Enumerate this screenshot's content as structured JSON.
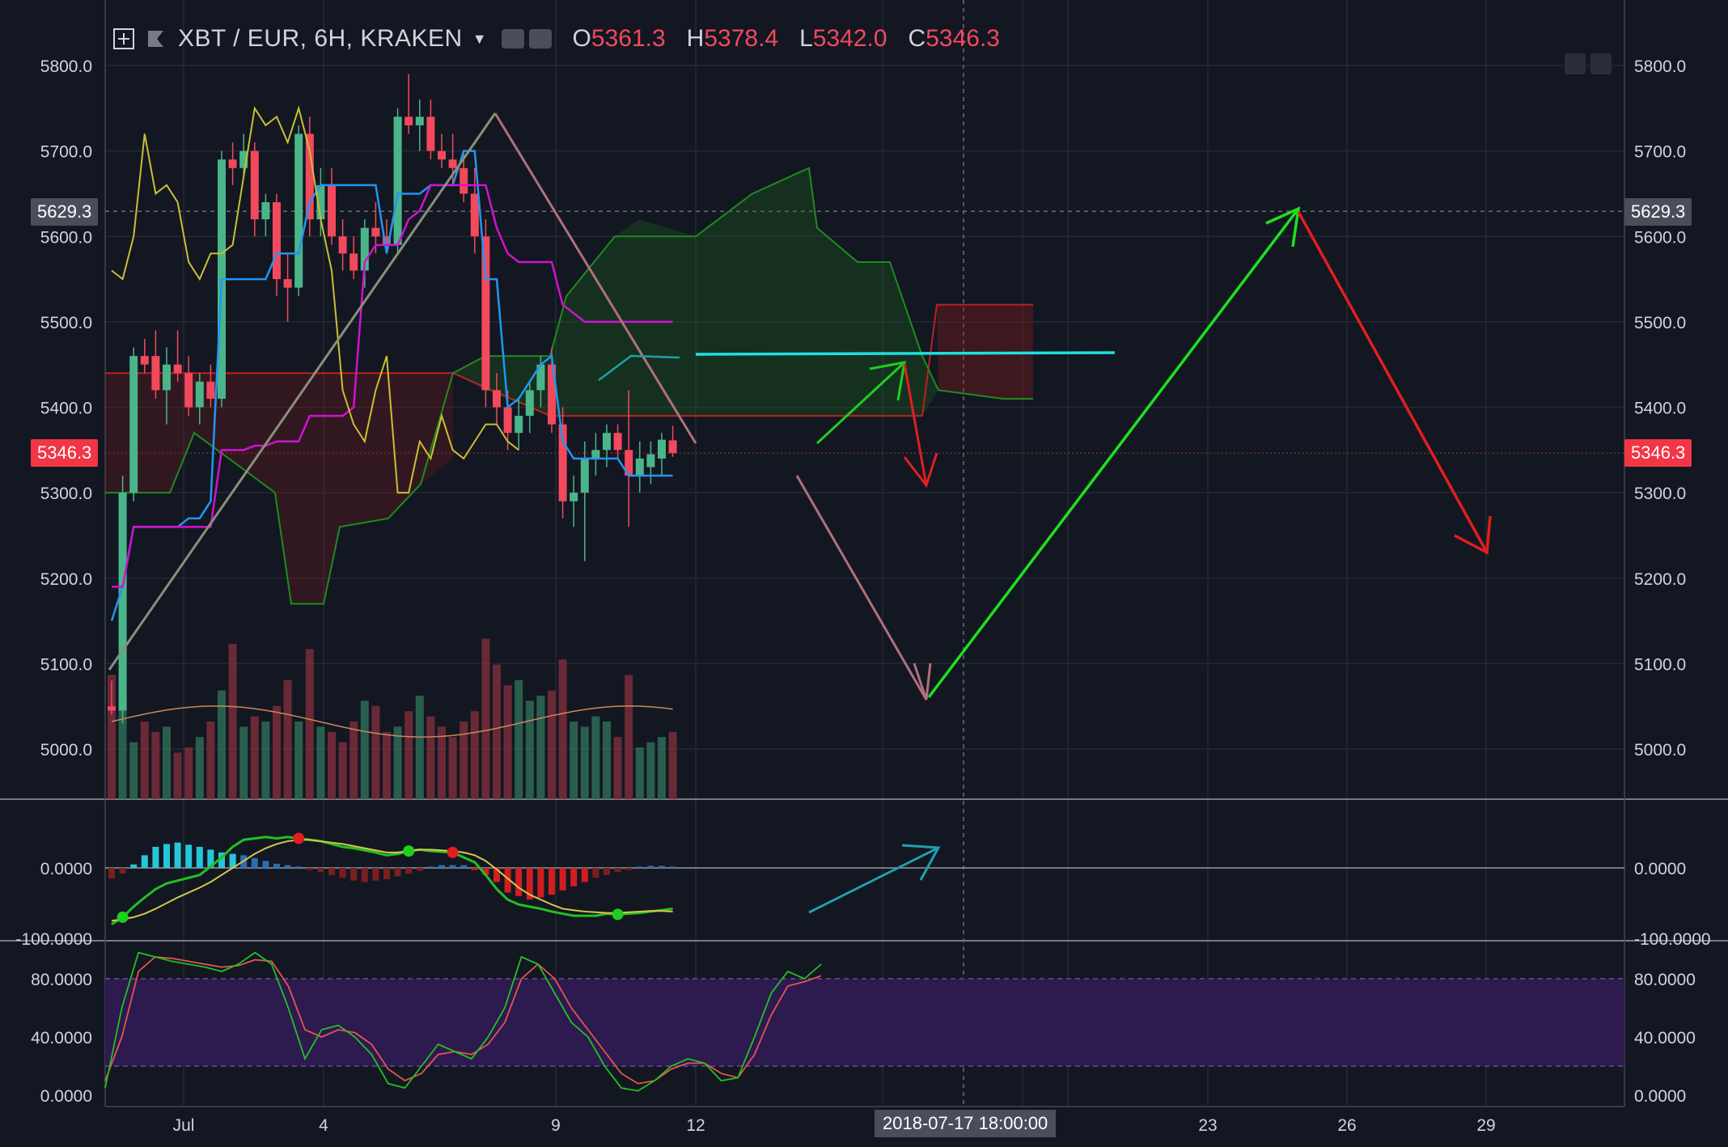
{
  "header": {
    "symbol": "XBT / EUR, 6H, KRAKEN",
    "o_label": "O",
    "o_value": "5361.3",
    "h_label": "H",
    "h_value": "5378.4",
    "l_label": "L",
    "l_value": "5342.0",
    "c_label": "C",
    "c_value": "5346.3"
  },
  "tags": {
    "last_price": "5346.3",
    "crosshair_price": "5629.3",
    "crosshair_time": "2018-07-17 18:00:00"
  },
  "colors": {
    "background": "#131722",
    "up": "#4bb58a",
    "down": "#f2495c",
    "tenkan": "#2196f3",
    "kijun": "#d012d0",
    "chikou": "#c8c030",
    "cloud_bull": "#1f6b1f",
    "cloud_bear": "#8b1a1a",
    "macd_line": "#22c022",
    "signal_line": "#d6c64a",
    "stoch_k": "#22c022",
    "stoch_d": "#e55353",
    "stoch_band": "#2d1a4f"
  },
  "chart_data": [
    {
      "type": "candlestick",
      "title": "XBT / EUR, 6H, KRAKEN",
      "ylim": [
        4940,
        5860
      ],
      "y_ticks": [
        "5000.0",
        "5100.0",
        "5200.0",
        "5300.0",
        "5400.0",
        "5500.0",
        "5600.0",
        "5700.0",
        "5800.0"
      ],
      "x_ticks": [
        "Jul",
        "4",
        "9",
        "12",
        "23",
        "26",
        "29"
      ],
      "last_ohlc": {
        "open": 5361.3,
        "high": 5378.4,
        "low": 5342.0,
        "close": 5346.3
      },
      "candles": [
        {
          "o": 5050,
          "h": 5080,
          "l": 5040,
          "c": 5045
        },
        {
          "o": 5045,
          "h": 5320,
          "l": 5030,
          "c": 5300
        },
        {
          "o": 5300,
          "h": 5470,
          "l": 5290,
          "c": 5460
        },
        {
          "o": 5460,
          "h": 5480,
          "l": 5440,
          "c": 5450
        },
        {
          "o": 5460,
          "h": 5490,
          "l": 5410,
          "c": 5420
        },
        {
          "o": 5420,
          "h": 5470,
          "l": 5380,
          "c": 5450
        },
        {
          "o": 5450,
          "h": 5490,
          "l": 5430,
          "c": 5440
        },
        {
          "o": 5440,
          "h": 5460,
          "l": 5390,
          "c": 5400
        },
        {
          "o": 5400,
          "h": 5440,
          "l": 5380,
          "c": 5430
        },
        {
          "o": 5430,
          "h": 5450,
          "l": 5400,
          "c": 5410
        },
        {
          "o": 5410,
          "h": 5700,
          "l": 5400,
          "c": 5690
        },
        {
          "o": 5690,
          "h": 5710,
          "l": 5660,
          "c": 5680
        },
        {
          "o": 5680,
          "h": 5720,
          "l": 5670,
          "c": 5700
        },
        {
          "o": 5700,
          "h": 5710,
          "l": 5600,
          "c": 5620
        },
        {
          "o": 5620,
          "h": 5650,
          "l": 5600,
          "c": 5640
        },
        {
          "o": 5640,
          "h": 5650,
          "l": 5530,
          "c": 5550
        },
        {
          "o": 5550,
          "h": 5580,
          "l": 5500,
          "c": 5540
        },
        {
          "o": 5540,
          "h": 5730,
          "l": 5530,
          "c": 5720
        },
        {
          "o": 5720,
          "h": 5740,
          "l": 5600,
          "c": 5620
        },
        {
          "o": 5620,
          "h": 5680,
          "l": 5600,
          "c": 5660
        },
        {
          "o": 5660,
          "h": 5680,
          "l": 5590,
          "c": 5600
        },
        {
          "o": 5600,
          "h": 5620,
          "l": 5560,
          "c": 5580
        },
        {
          "o": 5580,
          "h": 5600,
          "l": 5550,
          "c": 5560
        },
        {
          "o": 5560,
          "h": 5620,
          "l": 5540,
          "c": 5610
        },
        {
          "o": 5610,
          "h": 5640,
          "l": 5580,
          "c": 5600
        },
        {
          "o": 5600,
          "h": 5620,
          "l": 5580,
          "c": 5590
        },
        {
          "o": 5590,
          "h": 5750,
          "l": 5580,
          "c": 5740
        },
        {
          "o": 5740,
          "h": 5790,
          "l": 5720,
          "c": 5730
        },
        {
          "o": 5730,
          "h": 5760,
          "l": 5700,
          "c": 5740
        },
        {
          "o": 5740,
          "h": 5760,
          "l": 5690,
          "c": 5700
        },
        {
          "o": 5700,
          "h": 5720,
          "l": 5680,
          "c": 5690
        },
        {
          "o": 5690,
          "h": 5720,
          "l": 5660,
          "c": 5680
        },
        {
          "o": 5680,
          "h": 5700,
          "l": 5640,
          "c": 5650
        },
        {
          "o": 5650,
          "h": 5680,
          "l": 5580,
          "c": 5600
        },
        {
          "o": 5600,
          "h": 5620,
          "l": 5400,
          "c": 5420
        },
        {
          "o": 5420,
          "h": 5440,
          "l": 5380,
          "c": 5400
        },
        {
          "o": 5400,
          "h": 5420,
          "l": 5350,
          "c": 5370
        },
        {
          "o": 5370,
          "h": 5410,
          "l": 5350,
          "c": 5390
        },
        {
          "o": 5390,
          "h": 5430,
          "l": 5370,
          "c": 5420
        },
        {
          "o": 5420,
          "h": 5460,
          "l": 5400,
          "c": 5450
        },
        {
          "o": 5450,
          "h": 5470,
          "l": 5370,
          "c": 5380
        },
        {
          "o": 5380,
          "h": 5400,
          "l": 5270,
          "c": 5290
        },
        {
          "o": 5290,
          "h": 5320,
          "l": 5260,
          "c": 5300
        },
        {
          "o": 5300,
          "h": 5360,
          "l": 5220,
          "c": 5340
        },
        {
          "o": 5340,
          "h": 5370,
          "l": 5320,
          "c": 5350
        },
        {
          "o": 5350,
          "h": 5380,
          "l": 5330,
          "c": 5370
        },
        {
          "o": 5370,
          "h": 5380,
          "l": 5340,
          "c": 5350
        },
        {
          "o": 5350,
          "h": 5420,
          "l": 5260,
          "c": 5320
        },
        {
          "o": 5320,
          "h": 5360,
          "l": 5300,
          "c": 5340
        },
        {
          "o": 5330,
          "h": 5360,
          "l": 5310,
          "c": 5345
        },
        {
          "o": 5340,
          "h": 5370,
          "l": 5320,
          "c": 5362
        },
        {
          "o": 5361.3,
          "h": 5378.4,
          "l": 5342.0,
          "c": 5346.3
        }
      ],
      "volume": [
        48,
        40,
        22,
        30,
        26,
        28,
        18,
        20,
        24,
        30,
        42,
        60,
        28,
        32,
        30,
        36,
        46,
        30,
        58,
        28,
        26,
        22,
        30,
        38,
        36,
        26,
        28,
        34,
        40,
        32,
        28,
        24,
        30,
        34,
        62,
        52,
        44,
        46,
        38,
        40,
        42,
        54,
        30,
        28,
        32,
        30,
        24,
        48,
        20,
        22,
        24,
        26
      ],
      "ichimoku": {
        "tenkan": [
          5150,
          5190,
          5260,
          5260,
          5260,
          5260,
          5260,
          5270,
          5270,
          5290,
          5550,
          5550,
          5550,
          5550,
          5550,
          5580,
          5580,
          5580,
          5640,
          5660,
          5660,
          5660,
          5660,
          5660,
          5660,
          5580,
          5650,
          5650,
          5650,
          5660,
          5660,
          5660,
          5700,
          5700,
          5550,
          5550,
          5400,
          5410,
          5430,
          5450,
          5460,
          5360,
          5340,
          5340,
          5340,
          5340,
          5340,
          5320,
          5320,
          5320,
          5320,
          5320
        ],
        "kijun": [
          5190,
          5190,
          5260,
          5260,
          5260,
          5260,
          5260,
          5260,
          5260,
          5260,
          5350,
          5350,
          5350,
          5355,
          5355,
          5360,
          5360,
          5360,
          5390,
          5390,
          5390,
          5390,
          5400,
          5570,
          5590,
          5590,
          5590,
          5620,
          5630,
          5660,
          5660,
          5660,
          5660,
          5660,
          5660,
          5610,
          5580,
          5570,
          5570,
          5570,
          5570,
          5520,
          5510,
          5500,
          5500,
          5500,
          5500,
          5500,
          5500,
          5500,
          5500,
          5500
        ],
        "chikou": [
          5560,
          5550,
          5600,
          5720,
          5650,
          5660,
          5640,
          5570,
          5550,
          5580,
          5580,
          5590,
          5670,
          5750,
          5730,
          5740,
          5710,
          5750,
          5700,
          5620,
          5560,
          5420,
          5380,
          5360,
          5420,
          5460,
          5300,
          5300,
          5360,
          5340,
          5390,
          5350,
          5340,
          5360,
          5380,
          5380,
          5360,
          5350
        ]
      },
      "annotations": [
        "trend projection arrows",
        "resistance line"
      ]
    },
    {
      "type": "macd",
      "ylim": [
        -100,
        50
      ],
      "y_ticks": [
        "0.0000",
        "-100.0000"
      ],
      "histogram": [
        -15,
        -8,
        5,
        18,
        30,
        34,
        36,
        33,
        30,
        26,
        22,
        20,
        18,
        14,
        10,
        6,
        4,
        2,
        -3,
        -6,
        -10,
        -14,
        -18,
        -20,
        -18,
        -16,
        -12,
        -8,
        -4,
        2,
        4,
        4,
        4,
        -3,
        -10,
        -20,
        -35,
        -40,
        -45,
        -42,
        -38,
        -32,
        -26,
        -20,
        -14,
        -10,
        -6,
        -3,
        2,
        3,
        3,
        2
      ],
      "macd": [
        -80,
        -70,
        -55,
        -42,
        -30,
        -22,
        -18,
        -14,
        -10,
        2,
        15,
        30,
        40,
        42,
        44,
        42,
        44,
        42,
        40,
        38,
        34,
        30,
        28,
        25,
        22,
        18,
        20,
        24,
        26,
        24,
        23,
        22,
        15,
        8,
        -10,
        -30,
        -45,
        -52,
        -55,
        -58,
        -62,
        -65,
        -68,
        -68,
        -68,
        -65,
        -66,
        -65,
        -64,
        -62,
        -60,
        -58
      ],
      "signal": [
        -75,
        -73,
        -70,
        -65,
        -58,
        -50,
        -42,
        -35,
        -28,
        -20,
        -10,
        0,
        10,
        20,
        28,
        34,
        38,
        40,
        40,
        38,
        36,
        34,
        31,
        28,
        25,
        22,
        22,
        24,
        26,
        26,
        25,
        24,
        22,
        18,
        10,
        -2,
        -15,
        -28,
        -38,
        -45,
        -52,
        -58,
        -60,
        -62,
        -63,
        -64,
        -64,
        -63,
        -62,
        -61,
        -61,
        -62
      ]
    },
    {
      "type": "stochastic",
      "ylim": [
        0,
        100
      ],
      "y_ticks": [
        "0.0000",
        "40.0000",
        "80.0000"
      ],
      "band": [
        20,
        80
      ],
      "k": [
        5,
        60,
        98,
        95,
        92,
        90,
        88,
        85,
        90,
        98,
        90,
        60,
        25,
        45,
        48,
        40,
        28,
        8,
        5,
        20,
        35,
        30,
        25,
        40,
        60,
        95,
        90,
        70,
        50,
        40,
        20,
        5,
        3,
        10,
        20,
        25,
        22,
        10,
        12,
        40,
        70,
        85,
        80,
        90
      ],
      "d": [
        10,
        40,
        85,
        95,
        94,
        92,
        90,
        88,
        89,
        93,
        92,
        75,
        45,
        40,
        45,
        43,
        35,
        18,
        10,
        15,
        28,
        30,
        28,
        35,
        50,
        80,
        90,
        80,
        60,
        45,
        30,
        15,
        8,
        10,
        18,
        22,
        22,
        15,
        12,
        28,
        55,
        75,
        78,
        82
      ]
    }
  ]
}
